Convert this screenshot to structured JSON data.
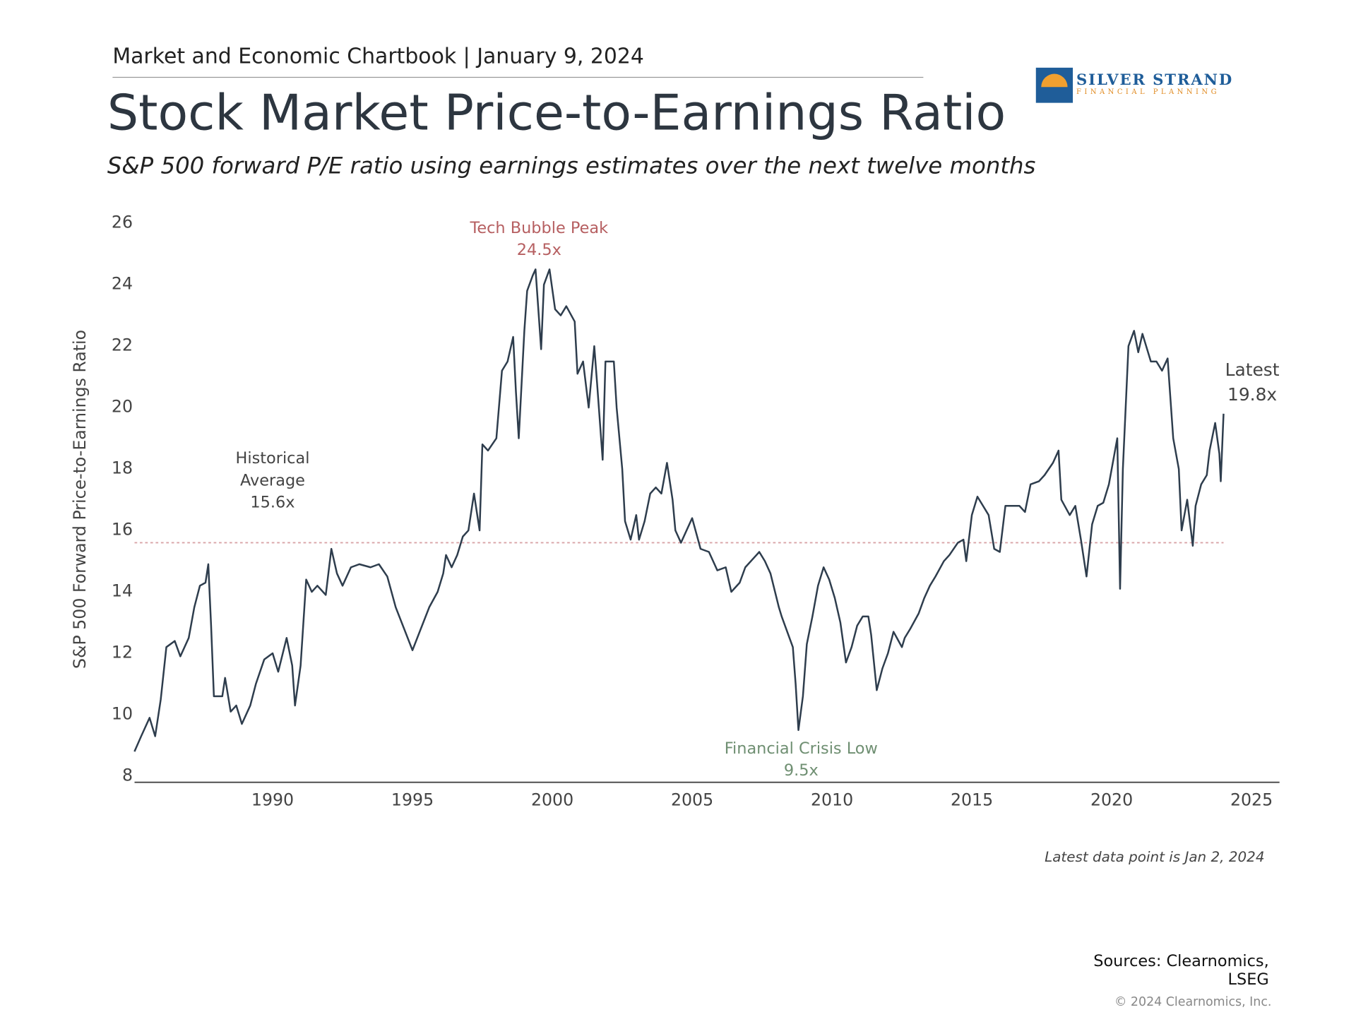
{
  "header": {
    "kicker": "Market and Economic Chartbook | January 9, 2024",
    "logo": {
      "name": "SILVER STRAND",
      "tagline": "FINANCIAL PLANNING"
    }
  },
  "chart_data": {
    "type": "line",
    "title": "Stock Market Price-to-Earnings Ratio",
    "subtitle": "S&P 500 forward P/E ratio using earnings estimates over the next twelve months",
    "y_label": "S&P 500 Forward Price-to-Earnings Ratio",
    "x": [
      1985.06,
      1985.3,
      1985.6,
      1985.8,
      1986.0,
      1986.2,
      1986.5,
      1986.7,
      1987.0,
      1987.2,
      1987.4,
      1987.6,
      1987.7,
      1987.8,
      1987.9,
      1988.2,
      1988.3,
      1988.5,
      1988.7,
      1988.9,
      1989.2,
      1989.4,
      1989.7,
      1990.0,
      1990.2,
      1990.5,
      1990.7,
      1990.8,
      1991.0,
      1991.2,
      1991.4,
      1991.6,
      1991.9,
      1992.1,
      1992.3,
      1992.5,
      1992.8,
      1993.1,
      1993.5,
      1993.8,
      1994.1,
      1994.4,
      1994.7,
      1995.0,
      1995.3,
      1995.6,
      1995.9,
      1996.1,
      1996.2,
      1996.4,
      1996.6,
      1996.8,
      1997.0,
      1997.2,
      1997.4,
      1997.5,
      1997.7,
      1998.0,
      1998.2,
      1998.4,
      1998.6,
      1998.7,
      1998.8,
      1999.0,
      1999.1,
      1999.3,
      1999.4,
      1999.6,
      1999.7,
      1999.9,
      2000.1,
      2000.3,
      2000.5,
      2000.8,
      2000.9,
      2001.1,
      2001.3,
      2001.5,
      2001.6,
      2001.8,
      2001.9,
      2002.2,
      2002.3,
      2002.5,
      2002.6,
      2002.8,
      2003.0,
      2003.1,
      2003.3,
      2003.5,
      2003.7,
      2003.9,
      2004.1,
      2004.3,
      2004.4,
      2004.6,
      2004.8,
      2005.0,
      2005.3,
      2005.6,
      2005.9,
      2006.2,
      2006.4,
      2006.7,
      2006.9,
      2007.2,
      2007.4,
      2007.6,
      2007.8,
      2008.1,
      2008.2,
      2008.4,
      2008.6,
      2008.7,
      2008.8,
      2008.96,
      2009.1,
      2009.3,
      2009.5,
      2009.7,
      2009.9,
      2010.1,
      2010.3,
      2010.5,
      2010.7,
      2010.9,
      2011.1,
      2011.3,
      2011.4,
      2011.6,
      2011.8,
      2012.0,
      2012.2,
      2012.5,
      2012.6,
      2012.8,
      2013.1,
      2013.3,
      2013.5,
      2013.7,
      2014.0,
      2014.2,
      2014.5,
      2014.7,
      2014.8,
      2015.0,
      2015.2,
      2015.4,
      2015.6,
      2015.8,
      2016.0,
      2016.2,
      2016.4,
      2016.7,
      2016.9,
      2017.1,
      2017.4,
      2017.6,
      2017.9,
      2018.1,
      2018.2,
      2018.5,
      2018.7,
      2018.9,
      2019.1,
      2019.3,
      2019.5,
      2019.7,
      2019.9,
      2020.1,
      2020.2,
      2020.3,
      2020.4,
      2020.6,
      2020.8,
      2020.95,
      2021.1,
      2021.4,
      2021.6,
      2021.8,
      2022.0,
      2022.2,
      2022.4,
      2022.5,
      2022.7,
      2022.9,
      2023.0,
      2023.2,
      2023.4,
      2023.5,
      2023.7,
      2023.85,
      2023.9,
      2024.0
    ],
    "series": [
      {
        "name": "S&P 500 Forward P/E",
        "color": "#2e3d4d",
        "values": [
          8.8,
          9.3,
          9.9,
          9.3,
          10.5,
          12.2,
          12.4,
          11.9,
          12.5,
          13.5,
          14.2,
          14.3,
          14.9,
          12.9,
          10.6,
          10.6,
          11.2,
          10.1,
          10.3,
          9.7,
          10.3,
          11.0,
          11.8,
          12.0,
          11.4,
          12.5,
          11.6,
          10.3,
          11.6,
          14.4,
          14.0,
          14.2,
          13.9,
          15.4,
          14.6,
          14.2,
          14.8,
          14.9,
          14.8,
          14.9,
          14.5,
          13.5,
          12.8,
          12.1,
          12.8,
          13.5,
          14.0,
          14.6,
          15.2,
          14.8,
          15.2,
          15.8,
          16.0,
          17.2,
          16.0,
          18.8,
          18.6,
          19.0,
          21.2,
          21.5,
          22.3,
          20.5,
          19.0,
          22.5,
          23.8,
          24.3,
          24.5,
          21.9,
          24.0,
          24.5,
          23.2,
          23.0,
          23.3,
          22.8,
          21.1,
          21.5,
          20.0,
          22.0,
          20.8,
          18.3,
          21.5,
          21.5,
          20.0,
          18.0,
          16.3,
          15.7,
          16.5,
          15.7,
          16.3,
          17.2,
          17.4,
          17.2,
          18.2,
          17.0,
          16.0,
          15.6,
          16.0,
          16.4,
          15.4,
          15.3,
          14.7,
          14.8,
          14.0,
          14.3,
          14.8,
          15.1,
          15.3,
          15.0,
          14.6,
          13.5,
          13.2,
          12.7,
          12.2,
          11.0,
          9.5,
          10.6,
          12.3,
          13.2,
          14.2,
          14.8,
          14.4,
          13.8,
          13.0,
          11.7,
          12.2,
          12.9,
          13.2,
          13.2,
          12.6,
          10.8,
          11.5,
          12.0,
          12.7,
          12.2,
          12.5,
          12.8,
          13.3,
          13.8,
          14.2,
          14.5,
          15.0,
          15.2,
          15.6,
          15.7,
          15.0,
          16.5,
          17.1,
          16.8,
          16.5,
          15.4,
          15.3,
          16.8,
          16.8,
          16.8,
          16.6,
          17.5,
          17.6,
          17.8,
          18.2,
          18.6,
          17.0,
          16.5,
          16.8,
          15.7,
          14.5,
          16.2,
          16.8,
          16.9,
          17.5,
          18.5,
          19.0,
          14.1,
          18.0,
          22.0,
          22.5,
          21.8,
          22.4,
          21.5,
          21.5,
          21.2,
          21.6,
          19.0,
          18.0,
          16.0,
          17.0,
          15.5,
          16.8,
          17.5,
          17.8,
          18.6,
          19.5,
          18.5,
          17.6,
          19.8
        ]
      }
    ],
    "xlim": [
      1985,
      2026
    ],
    "xticks": [
      1990,
      1995,
      2000,
      2005,
      2010,
      2015,
      2020,
      2025
    ],
    "ylim": [
      8,
      26
    ],
    "yticks": [
      8,
      10,
      12,
      14,
      16,
      18,
      20,
      22,
      24,
      26
    ],
    "grid": false,
    "average": {
      "lines": [
        "Historical",
        "Average"
      ],
      "value": 15.6,
      "value_label": "15.6x",
      "color": "#d9a3a6"
    },
    "annotations": [
      {
        "text": "Tech Bubble Peak",
        "value": 24.5,
        "value_label": "24.5x",
        "color": "#b65f61"
      },
      {
        "text": "Financial Crisis Low",
        "value": 9.5,
        "value_label": "9.5x",
        "color": "#6f8f72"
      },
      {
        "text": "Latest",
        "value": 19.8,
        "value_label": "19.8x",
        "color": "#444444"
      }
    ],
    "note": "Latest data point is Jan 2, 2024"
  },
  "footer": {
    "sources": [
      "Sources: Clearnomics,",
      "LSEG"
    ],
    "copyright": "© 2024 Clearnomics, Inc."
  }
}
